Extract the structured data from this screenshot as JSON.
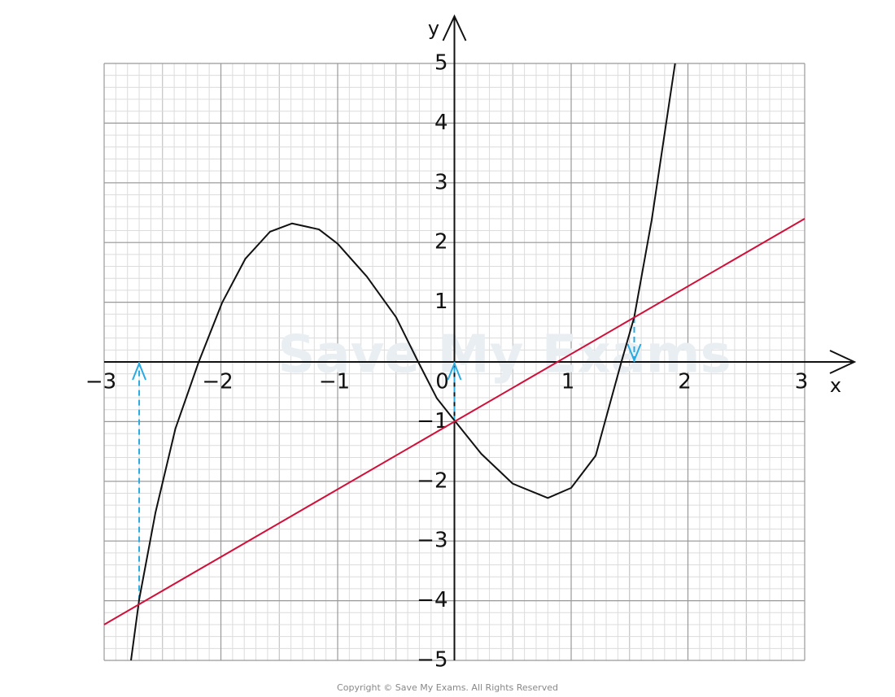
{
  "chart_data": {
    "type": "line",
    "x_label": "x",
    "y_label": "y",
    "xlim": [
      -3,
      3
    ],
    "ylim": [
      -5,
      5
    ],
    "xticks": [
      {
        "value": -3,
        "label": "−3"
      },
      {
        "value": -2,
        "label": "−2"
      },
      {
        "value": -1,
        "label": "−1"
      },
      0,
      1,
      2,
      3
    ],
    "yticks": [
      {
        "value": -5,
        "label": "−5"
      },
      {
        "value": -4,
        "label": "−4"
      },
      {
        "value": -3,
        "label": "−3"
      },
      {
        "value": -2,
        "label": "−2"
      },
      {
        "value": -1,
        "label": "−1"
      },
      1,
      2,
      3,
      4,
      5
    ],
    "grid": true,
    "x_minor_step": 0.1,
    "y_minor_step": 0.2,
    "series": [
      {
        "color": "#111111",
        "x": [
          -2.77,
          -2.7,
          -2.56,
          -2.39,
          -2.19,
          -1.99,
          -1.79,
          -1.58,
          -1.39,
          -1.16,
          -1.0,
          -0.75,
          -0.5,
          -0.31,
          -0.15,
          0,
          0.23,
          0.5,
          0.8,
          1.0,
          1.21,
          1.43,
          1.54,
          1.69,
          1.89
        ],
        "values": [
          -5.0,
          -3.98,
          -2.52,
          -1.12,
          0,
          0.99,
          1.73,
          2.18,
          2.32,
          2.22,
          1.98,
          1.43,
          0.75,
          0,
          -0.61,
          -0.98,
          -1.54,
          -2.04,
          -2.28,
          -2.11,
          -1.57,
          0,
          0.75,
          2.38,
          5.0
        ]
      },
      {
        "color": "#d0103a",
        "x": [
          -3,
          3
        ],
        "values": [
          -4.4,
          2.4
        ]
      }
    ],
    "arrows": {
      "color": "#29abe2",
      "x": [
        -2.7,
        0,
        1.54
      ],
      "from": [
        -4,
        -1,
        0.75
      ],
      "to": [
        0,
        0,
        0
      ]
    },
    "watermark": "Save My Exams",
    "footer": "Copyright © Save My Exams. All Rights Reserved"
  }
}
